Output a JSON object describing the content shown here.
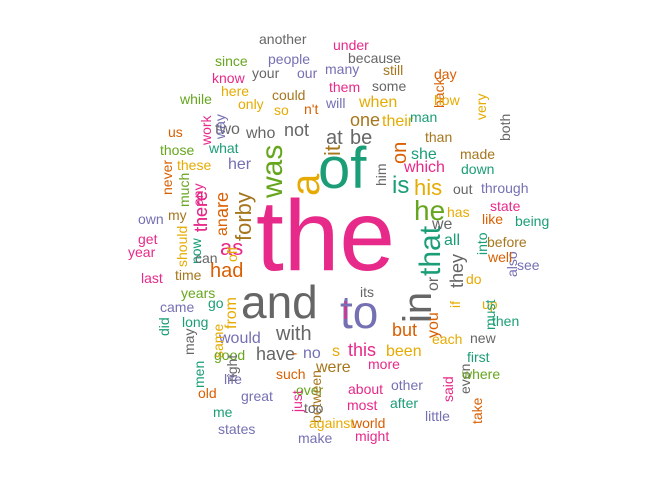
{
  "palette": {
    "pink": "#e7298a",
    "green": "#1b9e77",
    "purple": "#7570b3",
    "gray": "#666666",
    "olive": "#66a61e",
    "orange": "#d95f02",
    "gold": "#e6ab02",
    "brown": "#a6761d"
  },
  "words": [
    {
      "text": "the",
      "color": "pink"
    },
    {
      "text": "of",
      "color": "green"
    },
    {
      "text": "and",
      "color": "gray"
    },
    {
      "text": "to",
      "color": "purple"
    },
    {
      "text": "in",
      "color": "gray"
    },
    {
      "text": "a",
      "color": "gold"
    },
    {
      "text": "it",
      "color": "brown"
    },
    {
      "text": "was",
      "color": "olive"
    },
    {
      "text": "that",
      "color": "green"
    },
    {
      "text": "he",
      "color": "olive"
    },
    {
      "text": "is",
      "color": "green"
    },
    {
      "text": "his",
      "color": "gold"
    },
    {
      "text": "on",
      "color": "orange"
    },
    {
      "text": "be",
      "color": "gray"
    },
    {
      "text": "at",
      "color": "gray"
    },
    {
      "text": "i",
      "color": "pink"
    },
    {
      "text": "forby",
      "color": "brown"
    },
    {
      "text": "as",
      "color": "pink"
    },
    {
      "text": "had",
      "color": "orange"
    },
    {
      "text": "are",
      "color": "orange"
    },
    {
      "text": "an",
      "color": "orange"
    },
    {
      "text": "there",
      "color": "pink"
    },
    {
      "text": "her",
      "color": "purple"
    },
    {
      "text": "not",
      "color": "gray"
    },
    {
      "text": "with",
      "color": "gray"
    },
    {
      "text": "this",
      "color": "pink"
    },
    {
      "text": "from",
      "color": "gold"
    },
    {
      "text": "but",
      "color": "orange"
    },
    {
      "text": "they",
      "color": "gray"
    },
    {
      "text": "which",
      "color": "pink"
    },
    {
      "text": "or",
      "color": "gray"
    },
    {
      "text": "you",
      "color": "orange"
    },
    {
      "text": "have",
      "color": "gray"
    },
    {
      "text": "were",
      "color": "brown"
    },
    {
      "text": "one",
      "color": "brown"
    },
    {
      "text": "their",
      "color": "gold"
    },
    {
      "text": "she",
      "color": "green"
    },
    {
      "text": "him",
      "color": "gray"
    },
    {
      "text": "we",
      "color": "gray"
    },
    {
      "text": "all",
      "color": "green"
    },
    {
      "text": "when",
      "color": "gold"
    },
    {
      "text": "who",
      "color": "gray"
    },
    {
      "text": "two",
      "color": "gray"
    },
    {
      "text": "what",
      "color": "green"
    },
    {
      "text": "would",
      "color": "purple"
    },
    {
      "text": "been",
      "color": "gold"
    },
    {
      "text": "more",
      "color": "pink"
    },
    {
      "text": "s",
      "color": "gold"
    },
    {
      "text": "no",
      "color": "purple"
    },
    {
      "text": "-",
      "color": "orange"
    },
    {
      "text": "there",
      "color": "pink"
    },
    {
      "text": "another",
      "color": "gray"
    },
    {
      "text": "under",
      "color": "pink"
    },
    {
      "text": "since",
      "color": "olive"
    },
    {
      "text": "people",
      "color": "purple"
    },
    {
      "text": "because",
      "color": "gray"
    },
    {
      "text": "know",
      "color": "pink"
    },
    {
      "text": "your",
      "color": "gray"
    },
    {
      "text": "our",
      "color": "purple"
    },
    {
      "text": "many",
      "color": "purple"
    },
    {
      "text": "still",
      "color": "brown"
    },
    {
      "text": "day",
      "color": "orange"
    },
    {
      "text": "here",
      "color": "gold"
    },
    {
      "text": "could",
      "color": "brown"
    },
    {
      "text": "them",
      "color": "pink"
    },
    {
      "text": "some",
      "color": "gray"
    },
    {
      "text": "back",
      "color": "orange"
    },
    {
      "text": "how",
      "color": "gold"
    },
    {
      "text": "while",
      "color": "olive"
    },
    {
      "text": "only",
      "color": "gold"
    },
    {
      "text": "so",
      "color": "gold"
    },
    {
      "text": "n't",
      "color": "orange"
    },
    {
      "text": "will",
      "color": "purple"
    },
    {
      "text": "man",
      "color": "green"
    },
    {
      "text": "very",
      "color": "gold"
    },
    {
      "text": "way",
      "color": "purple"
    },
    {
      "text": "work",
      "color": "pink"
    },
    {
      "text": "us",
      "color": "orange"
    },
    {
      "text": "both",
      "color": "gray"
    },
    {
      "text": "than",
      "color": "brown"
    },
    {
      "text": "those",
      "color": "olive"
    },
    {
      "text": "made",
      "color": "brown"
    },
    {
      "text": "these",
      "color": "gold"
    },
    {
      "text": "down",
      "color": "green"
    },
    {
      "text": "never",
      "color": "orange"
    },
    {
      "text": "much",
      "color": "olive"
    },
    {
      "text": "any",
      "color": "pink"
    },
    {
      "text": "out",
      "color": "gray"
    },
    {
      "text": "through",
      "color": "purple"
    },
    {
      "text": "own",
      "color": "purple"
    },
    {
      "text": "my",
      "color": "brown"
    },
    {
      "text": "has",
      "color": "gold"
    },
    {
      "text": "like",
      "color": "orange"
    },
    {
      "text": "state",
      "color": "pink"
    },
    {
      "text": "being",
      "color": "green"
    },
    {
      "text": "get",
      "color": "pink"
    },
    {
      "text": "should",
      "color": "gold"
    },
    {
      "text": "now",
      "color": "green"
    },
    {
      "text": "can",
      "color": "gray"
    },
    {
      "text": "off",
      "color": "gold"
    },
    {
      "text": "into",
      "color": "green"
    },
    {
      "text": "before",
      "color": "brown"
    },
    {
      "text": "year",
      "color": "pink"
    },
    {
      "text": "time",
      "color": "brown"
    },
    {
      "text": "do",
      "color": "gold"
    },
    {
      "text": "also",
      "color": "purple"
    },
    {
      "text": "well",
      "color": "orange"
    },
    {
      "text": "see",
      "color": "purple"
    },
    {
      "text": "last",
      "color": "pink"
    },
    {
      "text": "go",
      "color": "green"
    },
    {
      "text": "its",
      "color": "gray"
    },
    {
      "text": "if",
      "color": "gold"
    },
    {
      "text": "up",
      "color": "gold"
    },
    {
      "text": "years",
      "color": "olive"
    },
    {
      "text": "did",
      "color": "green"
    },
    {
      "text": "came",
      "color": "purple"
    },
    {
      "text": "must",
      "color": "green"
    },
    {
      "text": "then",
      "color": "green"
    },
    {
      "text": "long",
      "color": "green"
    },
    {
      "text": "may",
      "color": "gray"
    },
    {
      "text": "same",
      "color": "gold"
    },
    {
      "text": "each",
      "color": "gold"
    },
    {
      "text": "new",
      "color": "gray"
    },
    {
      "text": "good",
      "color": "olive"
    },
    {
      "text": "first",
      "color": "green"
    },
    {
      "text": "men",
      "color": "green"
    },
    {
      "text": "right",
      "color": "gray"
    },
    {
      "text": "life",
      "color": "purple"
    },
    {
      "text": "such",
      "color": "orange"
    },
    {
      "text": "said",
      "color": "pink"
    },
    {
      "text": "even",
      "color": "gray"
    },
    {
      "text": "where",
      "color": "olive"
    },
    {
      "text": "old",
      "color": "orange"
    },
    {
      "text": "great",
      "color": "purple"
    },
    {
      "text": "just",
      "color": "pink"
    },
    {
      "text": "over",
      "color": "olive"
    },
    {
      "text": "about",
      "color": "pink"
    },
    {
      "text": "other",
      "color": "purple"
    },
    {
      "text": "me",
      "color": "green"
    },
    {
      "text": "between",
      "color": "brown"
    },
    {
      "text": "too",
      "color": "gray"
    },
    {
      "text": "most",
      "color": "pink"
    },
    {
      "text": "after",
      "color": "green"
    },
    {
      "text": "little",
      "color": "purple"
    },
    {
      "text": "take",
      "color": "orange"
    },
    {
      "text": "states",
      "color": "purple"
    },
    {
      "text": "against",
      "color": "gold"
    },
    {
      "text": "world",
      "color": "orange"
    },
    {
      "text": "make",
      "color": "purple"
    },
    {
      "text": "might",
      "color": "pink"
    },
    {
      "text": "come",
      "color": "brown"
    }
  ]
}
